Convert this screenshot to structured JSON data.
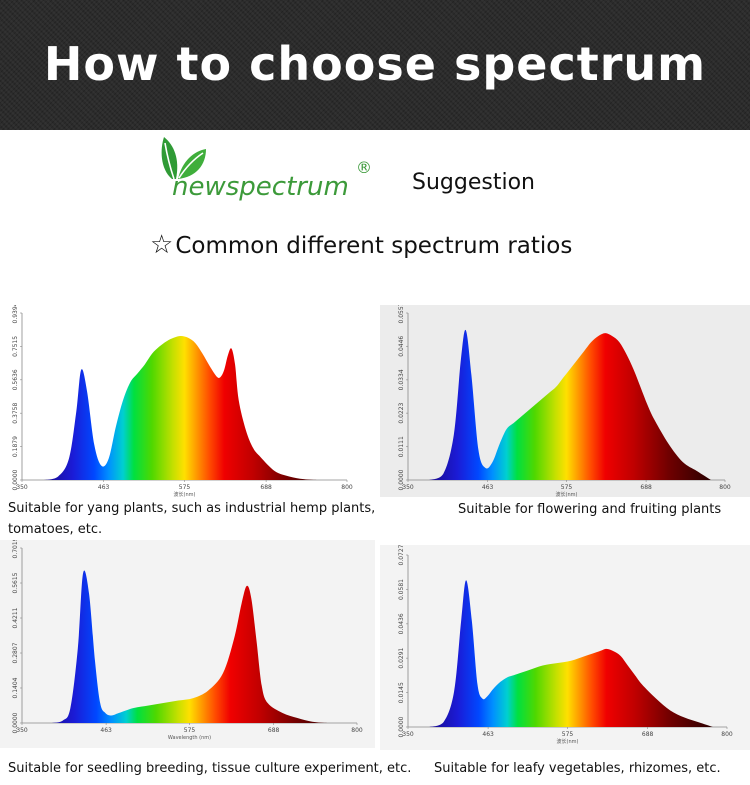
{
  "header": {
    "title": "How to choose spectrum"
  },
  "brand": {
    "logo_text": "newspectrum",
    "registered": "®",
    "suggestion": "Suggestion",
    "logo_color": "#3c9a3a"
  },
  "section": {
    "star": "☆",
    "subtitle": "Common different spectrum ratios"
  },
  "chart_data": [
    {
      "type": "area",
      "x_ticks": [
        "350",
        "463",
        "575",
        "688",
        "800"
      ],
      "y_ticks": [
        "0.0000",
        "0.1879",
        "0.3758",
        "0.5636",
        "0.7515",
        "0.9394"
      ],
      "xlim": [
        350,
        800
      ],
      "ylim": [
        0,
        0.9394
      ],
      "xlabel": "波长(nm)",
      "x": [
        380,
        400,
        415,
        425,
        432,
        440,
        450,
        460,
        470,
        480,
        490,
        500,
        510,
        520,
        530,
        540,
        550,
        560,
        570,
        580,
        590,
        600,
        610,
        620,
        625,
        630,
        635,
        640,
        645,
        650,
        660,
        670,
        680,
        700,
        720,
        740,
        760
      ],
      "y": [
        0.0,
        0.02,
        0.12,
        0.38,
        0.62,
        0.5,
        0.2,
        0.08,
        0.12,
        0.3,
        0.45,
        0.55,
        0.6,
        0.65,
        0.71,
        0.75,
        0.78,
        0.8,
        0.81,
        0.8,
        0.77,
        0.71,
        0.64,
        0.58,
        0.58,
        0.62,
        0.7,
        0.74,
        0.65,
        0.45,
        0.28,
        0.18,
        0.13,
        0.05,
        0.02,
        0.005,
        0.0
      ],
      "caption": "Suitable for yang plants, such as industrial hemp plants, tomatoes, etc."
    },
    {
      "type": "area",
      "x_ticks": [
        "350",
        "463",
        "575",
        "688",
        "800"
      ],
      "y_ticks": [
        "0.0000",
        "0.0111",
        "0.0223",
        "0.0334",
        "0.0446",
        "0.0557"
      ],
      "xlim": [
        350,
        800
      ],
      "ylim": [
        0,
        0.0557
      ],
      "xlabel": "波长(nm)",
      "x": [
        380,
        400,
        415,
        425,
        432,
        440,
        450,
        460,
        470,
        480,
        490,
        500,
        510,
        520,
        530,
        540,
        550,
        560,
        570,
        580,
        590,
        600,
        610,
        620,
        630,
        640,
        650,
        660,
        670,
        680,
        690,
        700,
        720,
        740,
        760,
        780
      ],
      "y": [
        0.0,
        0.002,
        0.015,
        0.04,
        0.05,
        0.035,
        0.01,
        0.004,
        0.006,
        0.012,
        0.017,
        0.019,
        0.021,
        0.023,
        0.025,
        0.027,
        0.029,
        0.031,
        0.034,
        0.037,
        0.04,
        0.043,
        0.046,
        0.048,
        0.049,
        0.048,
        0.046,
        0.042,
        0.037,
        0.031,
        0.025,
        0.02,
        0.012,
        0.006,
        0.003,
        0.0
      ],
      "caption": "Suitable for flowering and fruiting plants"
    },
    {
      "type": "area",
      "x_ticks": [
        "350",
        "463",
        "575",
        "688",
        "800"
      ],
      "y_ticks": [
        "0.0000",
        "0.1404",
        "0.2807",
        "0.4211",
        "0.5615",
        "0.7019"
      ],
      "xlim": [
        350,
        800
      ],
      "ylim": [
        0,
        0.7019
      ],
      "xlabel": "Wavelength (nm)",
      "x": [
        390,
        405,
        415,
        425,
        432,
        440,
        448,
        455,
        462,
        470,
        480,
        500,
        520,
        540,
        560,
        580,
        600,
        620,
        635,
        645,
        652,
        658,
        665,
        672,
        680,
        700,
        720,
        740,
        760
      ],
      "y": [
        0.0,
        0.01,
        0.06,
        0.3,
        0.6,
        0.52,
        0.25,
        0.08,
        0.04,
        0.03,
        0.04,
        0.06,
        0.07,
        0.08,
        0.09,
        0.1,
        0.13,
        0.2,
        0.34,
        0.48,
        0.55,
        0.5,
        0.33,
        0.15,
        0.08,
        0.04,
        0.02,
        0.005,
        0.0
      ],
      "caption": "Suitable for seedling breeding, tissue culture experiment, etc."
    },
    {
      "type": "area",
      "x_ticks": [
        "350",
        "463",
        "575",
        "688",
        "800"
      ],
      "y_ticks": [
        "0.0000",
        "0.0145",
        "0.0291",
        "0.0436",
        "0.0581",
        "0.0727"
      ],
      "xlim": [
        350,
        800
      ],
      "ylim": [
        0,
        0.0727
      ],
      "xlabel": "波长(nm)",
      "x": [
        380,
        400,
        415,
        425,
        432,
        440,
        448,
        455,
        462,
        470,
        480,
        490,
        500,
        520,
        540,
        560,
        580,
        600,
        620,
        630,
        640,
        650,
        660,
        670,
        680,
        700,
        720,
        740,
        760,
        780
      ],
      "y": [
        0.0,
        0.002,
        0.015,
        0.045,
        0.062,
        0.045,
        0.018,
        0.012,
        0.013,
        0.016,
        0.019,
        0.021,
        0.022,
        0.024,
        0.026,
        0.027,
        0.028,
        0.03,
        0.032,
        0.033,
        0.032,
        0.03,
        0.026,
        0.022,
        0.018,
        0.012,
        0.007,
        0.004,
        0.002,
        0.0
      ],
      "caption": "Suitable for leafy vegetables, rhizomes, etc."
    }
  ]
}
